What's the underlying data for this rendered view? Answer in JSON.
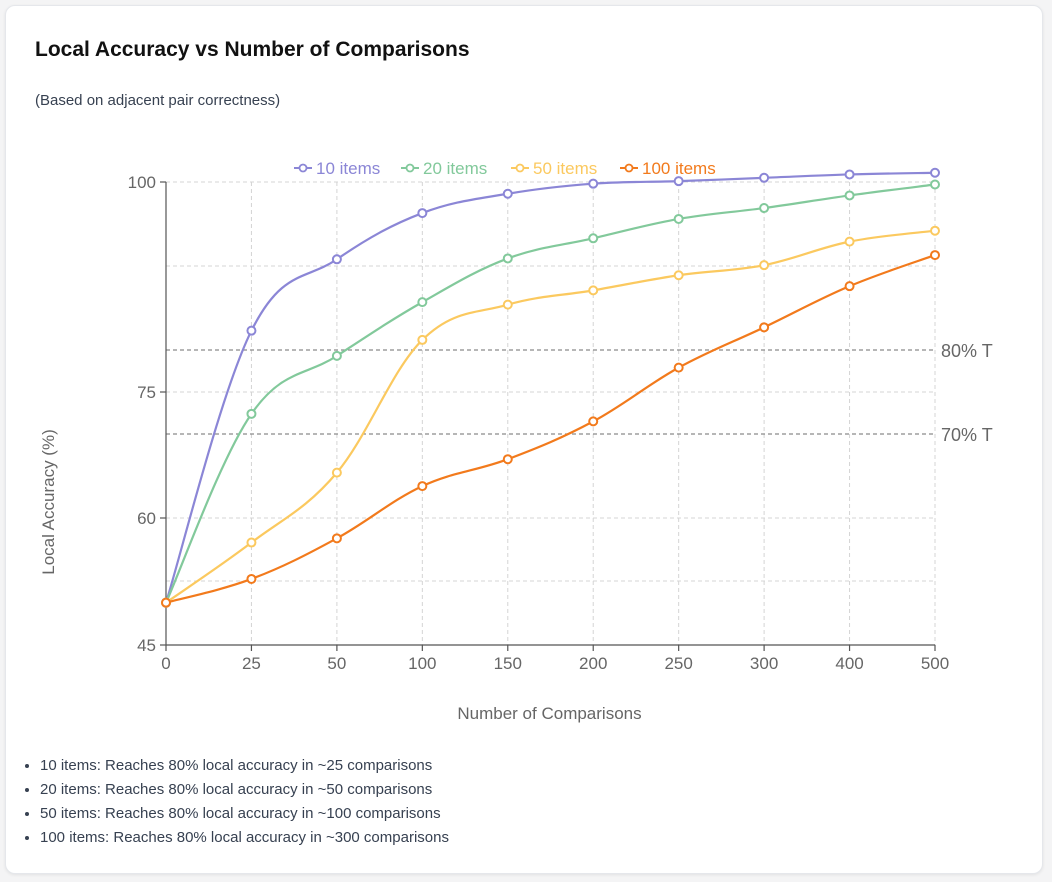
{
  "header": {
    "title": "Local Accuracy vs Number of Comparisons",
    "subtitle": "(Based on adjacent pair correctness)"
  },
  "chart_data": {
    "type": "line",
    "x": [
      "0",
      "25",
      "50",
      "100",
      "150",
      "200",
      "250",
      "300",
      "400",
      "500"
    ],
    "xlabel": "Number of Comparisons",
    "ylabel": "Local Accuracy (%)",
    "ylim": [
      45,
      100
    ],
    "yticks": [
      "100",
      "75",
      "60",
      "45"
    ],
    "grid": true,
    "legend_position": "top-center",
    "series": [
      {
        "name": "10 items",
        "color": "#8b86d6",
        "values": [
          50,
          82.3,
          90.8,
          96.3,
          98.6,
          99.8,
          100.1,
          100.5,
          100.9,
          101.1
        ]
      },
      {
        "name": "20 items",
        "color": "#82c99b",
        "values": [
          50,
          72.4,
          79.3,
          85.7,
          90.9,
          93.3,
          95.6,
          96.9,
          98.4,
          99.7
        ]
      },
      {
        "name": "50 items",
        "color": "#fbc95f",
        "values": [
          50,
          57.1,
          65.4,
          81.2,
          85.4,
          87.1,
          88.9,
          90.1,
          92.9,
          94.2
        ]
      },
      {
        "name": "100 items",
        "color": "#f27a1c",
        "values": [
          50,
          52.8,
          57.6,
          63.8,
          67.0,
          71.5,
          77.9,
          82.7,
          87.6,
          91.3
        ]
      }
    ],
    "reference_lines": [
      {
        "value": 80,
        "label": "80% T"
      },
      {
        "value": 70,
        "label": "70% T"
      }
    ]
  },
  "notes": [
    "10 items: Reaches 80% local accuracy in ~25 comparisons",
    "20 items: Reaches 80% local accuracy in ~50 comparisons",
    "50 items: Reaches 80% local accuracy in ~100 comparisons",
    "100 items: Reaches 80% local accuracy in ~300 comparisons"
  ]
}
